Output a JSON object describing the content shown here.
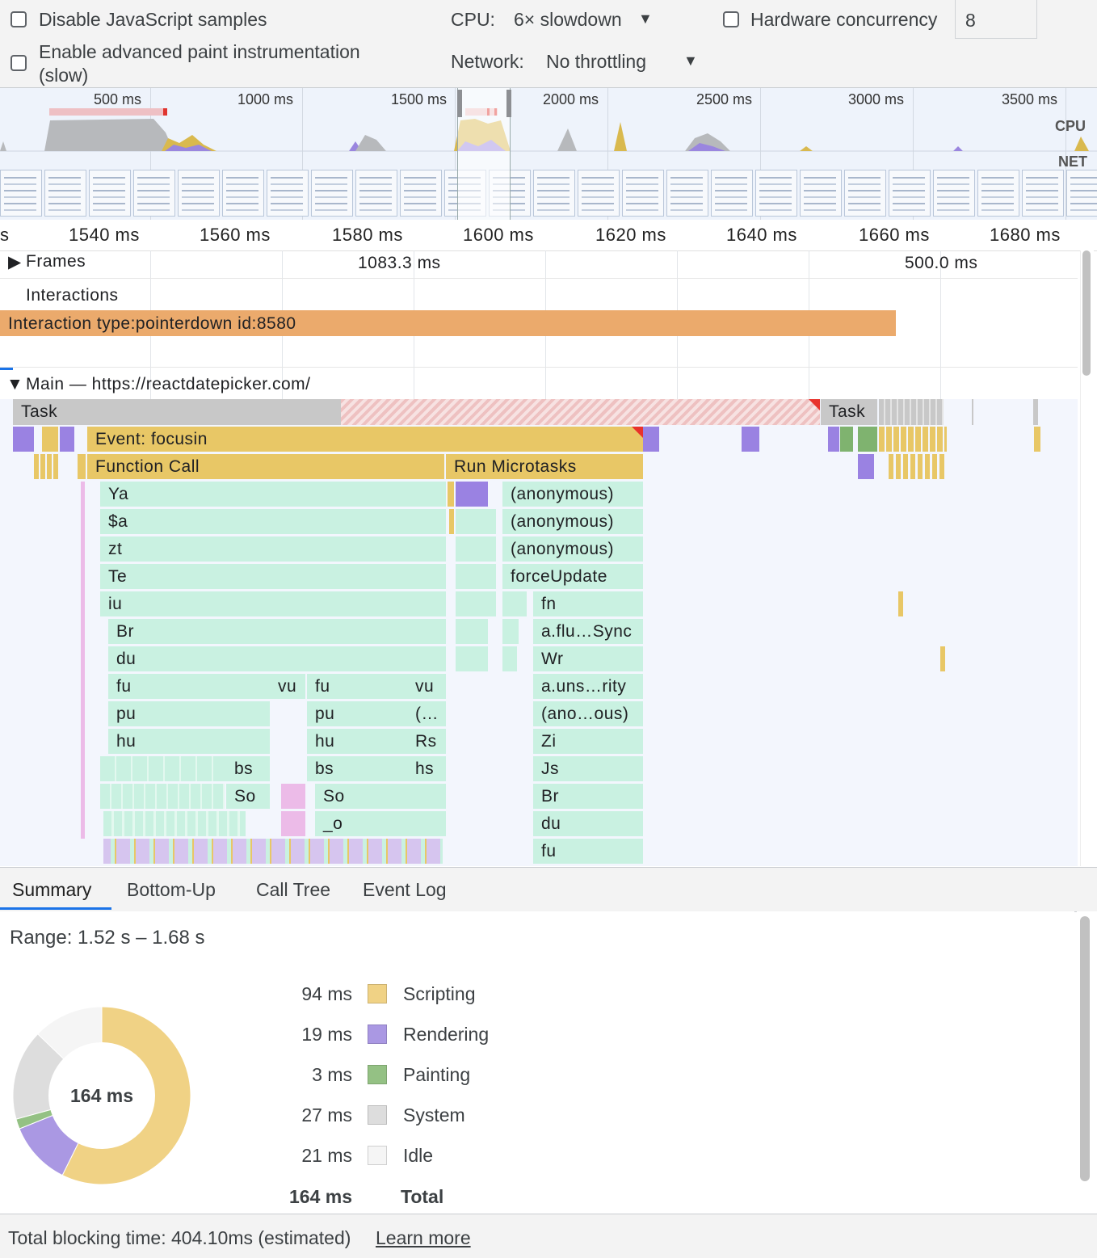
{
  "settings": {
    "disable_js_label": "Disable JavaScript samples",
    "advanced_paint_label_line1": "Enable advanced paint instrumentation",
    "advanced_paint_label_line2": "(slow)",
    "cpu_label": "CPU:",
    "cpu_value": "6× slowdown",
    "network_label": "Network:",
    "network_value": "No throttling",
    "hardware_label": "Hardware concurrency",
    "hardware_value": "8"
  },
  "overview": {
    "ticks": [
      "500 ms",
      "1000 ms",
      "1500 ms",
      "2000 ms",
      "2500 ms",
      "3000 ms",
      "3500 ms"
    ],
    "cpu_label": "CPU",
    "net_label": "NET"
  },
  "ruler": {
    "ticks": [
      "s",
      "1540 ms",
      "1560 ms",
      "1580 ms",
      "1600 ms",
      "1620 ms",
      "1640 ms",
      "1660 ms",
      "1680 ms"
    ]
  },
  "tracks": {
    "frames_label": "Frames",
    "frame_1": "1083.3 ms",
    "frame_2": "500.0 ms",
    "interactions_label": "Interactions",
    "interaction_text": "Interaction type:pointerdown id:8580",
    "main_label": "Main — https://reactdatepicker.com/"
  },
  "flame": {
    "task_1": "Task",
    "task_2": "Task",
    "event_focusin": "Event: focusin",
    "function_call": "Function Call",
    "run_microtasks": "Run Microtasks",
    "left_stack": [
      "Ya",
      "$a",
      "zt",
      "Te",
      "iu",
      "Br",
      "du",
      "fu",
      "pu",
      "hu"
    ],
    "left_bs": "bs",
    "left_so": "So",
    "mid_vu": "vu",
    "mid_stack": [
      "fu",
      "pu",
      "hu",
      "bs",
      "So",
      "_o"
    ],
    "right_vu": "vu",
    "right_col": [
      "(…",
      "Rs",
      "hs"
    ],
    "micro_stack": [
      "(anonymous)",
      "(anonymous)",
      "(anonymous)",
      "forceUpdate"
    ],
    "deep_stack": [
      "fn",
      "a.flu…Sync",
      "Wr",
      "a.uns…rity",
      "(ano…ous)",
      "Zi",
      "Js",
      "Br",
      "du",
      "fu"
    ]
  },
  "tabs": [
    "Summary",
    "Bottom-Up",
    "Call Tree",
    "Event Log"
  ],
  "active_tab": "Summary",
  "summary": {
    "range": "Range: 1.52 s – 1.68 s",
    "donut_center": "164 ms",
    "rows": [
      {
        "value": "94 ms",
        "name": "Scripting",
        "color": "#f0d285",
        "ms": 94
      },
      {
        "value": "19 ms",
        "name": "Rendering",
        "color": "#aa98e3",
        "ms": 19
      },
      {
        "value": "3 ms",
        "name": "Painting",
        "color": "#94c184",
        "ms": 3
      },
      {
        "value": "27 ms",
        "name": "System",
        "color": "#dddddd",
        "ms": 27
      },
      {
        "value": "21 ms",
        "name": "Idle",
        "color": "#f5f5f5",
        "ms": 21
      }
    ],
    "total_value": "164 ms",
    "total_label": "Total"
  },
  "footer": {
    "tbt": "Total blocking time: 404.10ms (estimated)",
    "learn_more": "Learn more"
  }
}
